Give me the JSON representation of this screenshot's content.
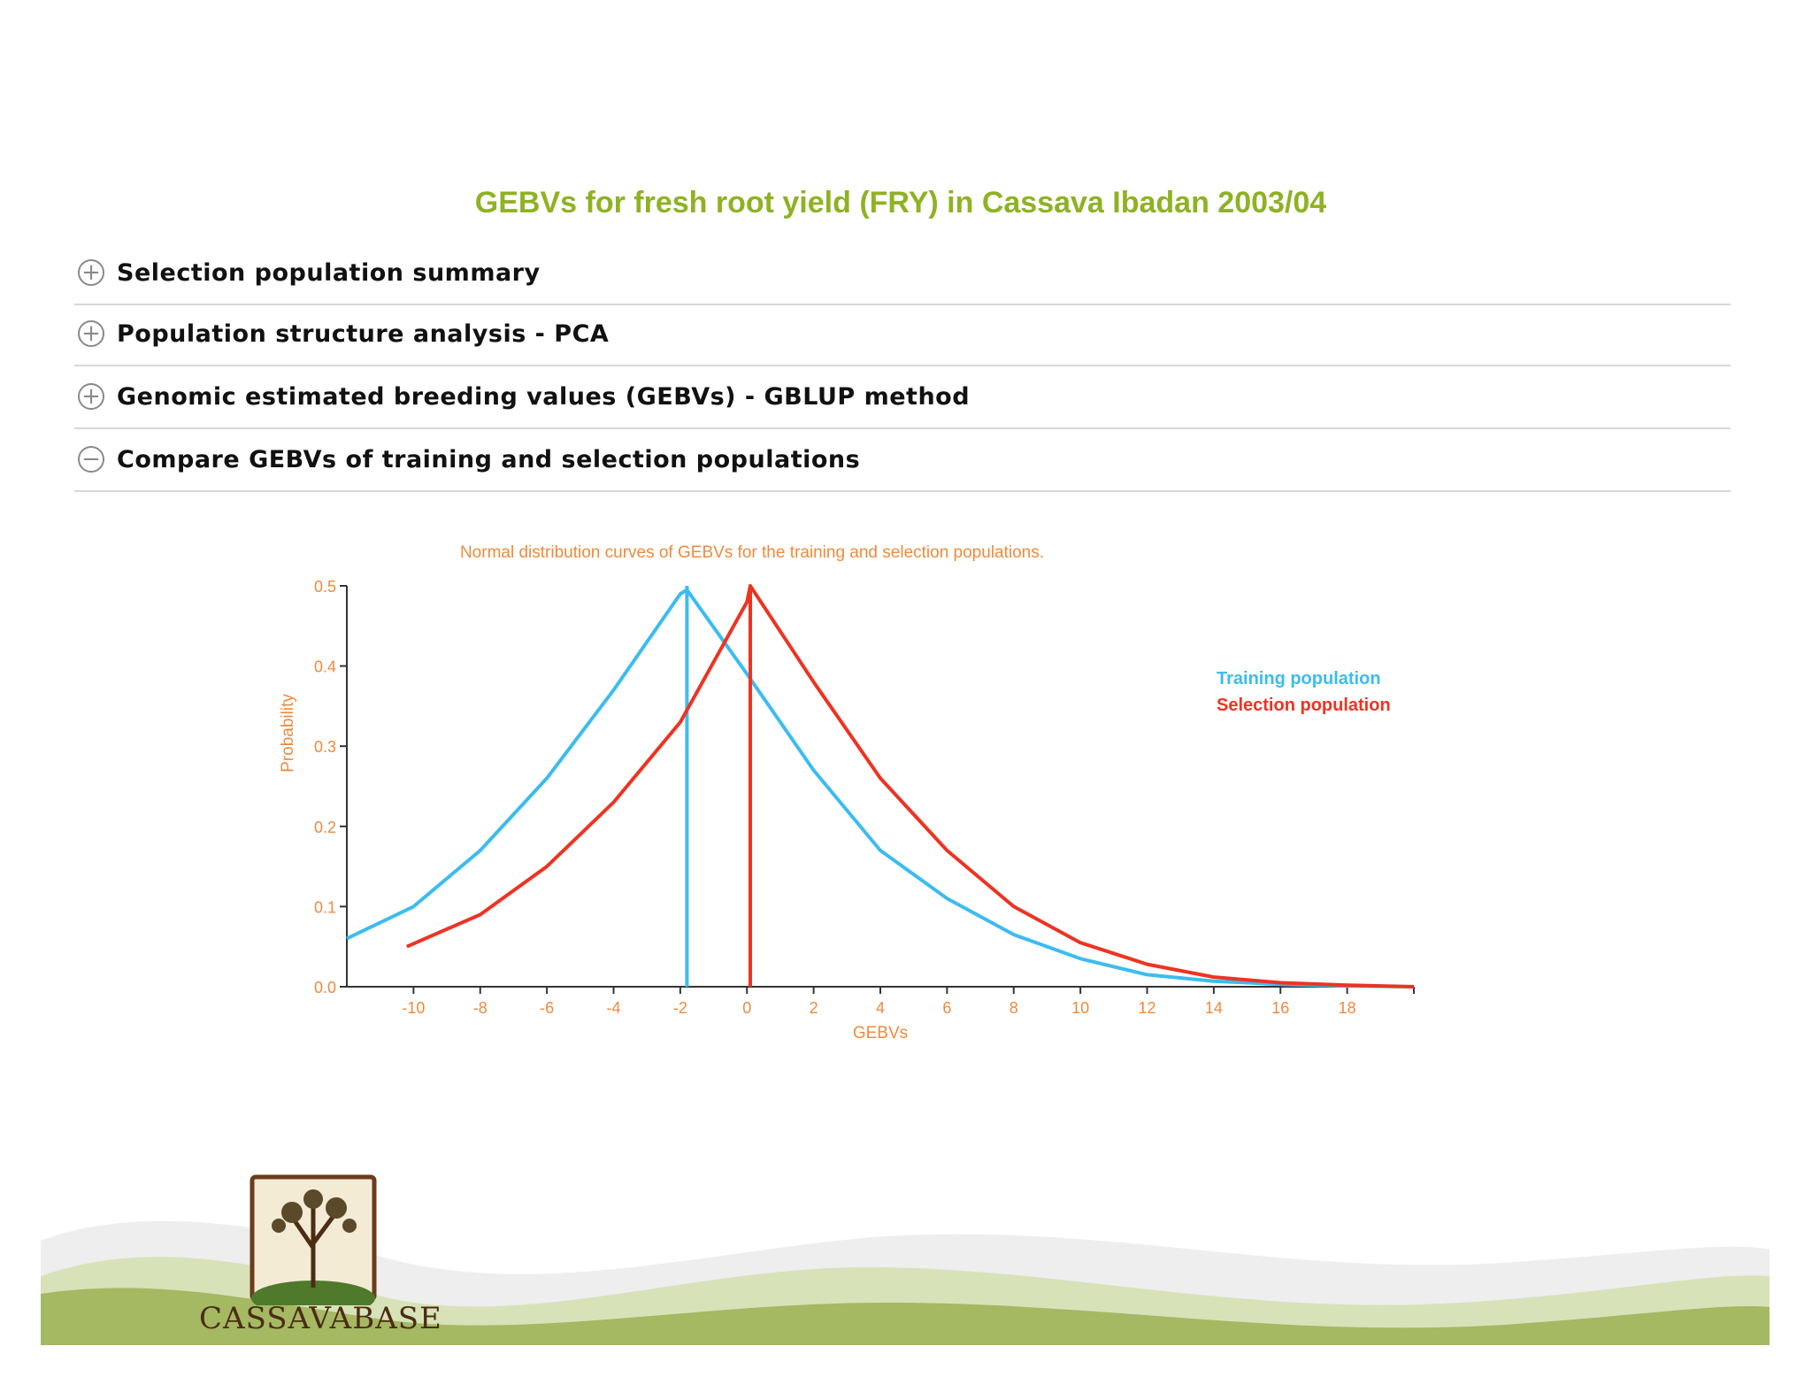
{
  "page": {
    "title": "GEBVs for fresh root yield (FRY) in Cassava Ibadan 2003/04"
  },
  "sections": [
    {
      "label": "Selection population summary",
      "state": "collapsed",
      "icon": "plus-circle-icon"
    },
    {
      "label": "Population structure analysis - PCA",
      "state": "collapsed",
      "icon": "plus-circle-icon"
    },
    {
      "label": "Genomic estimated breeding values (GEBVs) - GBLUP method",
      "state": "collapsed",
      "icon": "plus-circle-icon"
    },
    {
      "label": "Compare GEBVs of training and selection populations",
      "state": "expanded",
      "icon": "minus-circle-icon"
    }
  ],
  "toggle_symbols": {
    "collapsed": "+",
    "expanded": "−"
  },
  "colors": {
    "title": "#8fb223",
    "chart_text": "#f08a3c",
    "training": "#3cbcf0",
    "selection": "#ee3322",
    "hills": "#a4b962"
  },
  "chart_data": {
    "type": "line",
    "title": "Normal distribution curves of GEBVs for the training and selection populations.",
    "xlabel": "GEBVs",
    "ylabel": "Probability",
    "xlim": [
      -12,
      20
    ],
    "ylim": [
      0,
      0.5
    ],
    "xticks": [
      -10,
      -8,
      -6,
      -4,
      -2,
      0,
      2,
      4,
      6,
      8,
      10,
      12,
      14,
      16,
      18
    ],
    "yticks": [
      0.0,
      0.1,
      0.2,
      0.3,
      0.4,
      0.5
    ],
    "legend_position": "right",
    "series": [
      {
        "name": "Training population",
        "mean_line_x": -1.8,
        "x": [
          -12,
          -10,
          -8,
          -6,
          -4,
          -2,
          -1.8,
          0,
          2,
          4,
          6,
          8,
          10,
          12,
          14,
          16,
          18,
          20
        ],
        "y": [
          0.06,
          0.1,
          0.17,
          0.26,
          0.37,
          0.49,
          0.495,
          0.39,
          0.27,
          0.17,
          0.11,
          0.065,
          0.035,
          0.015,
          0.007,
          0.003,
          0.001,
          0.0
        ]
      },
      {
        "name": "Selection population",
        "mean_line_x": 0.1,
        "x": [
          -10.2,
          -8,
          -6,
          -4,
          -2,
          0,
          0.1,
          2,
          4,
          6,
          8,
          10,
          12,
          14,
          16,
          18,
          20
        ],
        "y": [
          0.05,
          0.09,
          0.15,
          0.23,
          0.33,
          0.48,
          0.5,
          0.38,
          0.26,
          0.17,
          0.1,
          0.055,
          0.028,
          0.012,
          0.005,
          0.002,
          0.0
        ]
      }
    ]
  },
  "logo": {
    "name": "CASSAVABASE"
  }
}
